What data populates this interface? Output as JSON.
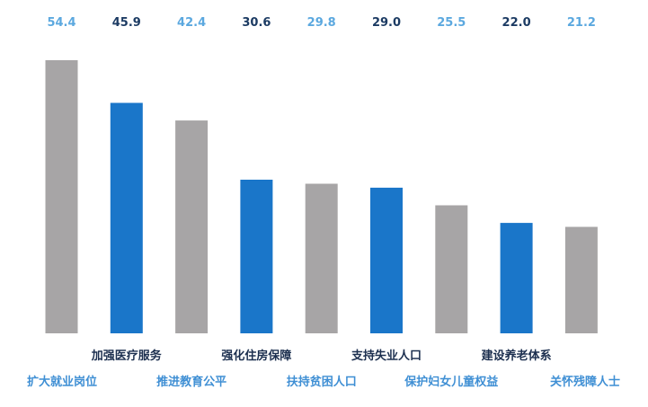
{
  "chart_data": {
    "type": "bar",
    "title": "",
    "xlabel": "",
    "ylabel": "",
    "ylim": [
      0,
      54.4
    ],
    "grid": false,
    "legend": "none",
    "categories": [
      "扩大就业岗位",
      "加强医疗服务",
      "推进教育公平",
      "强化住房保障",
      "扶持贫困人口",
      "支持失业人口",
      "保护妇女儿童权益",
      "建设养老体系",
      "关怀残障人士"
    ],
    "values": [
      54.4,
      45.9,
      42.4,
      30.6,
      29.8,
      29.0,
      25.5,
      22.0,
      21.2
    ],
    "value_labels": [
      "54.4",
      "45.9",
      "42.4",
      "30.6",
      "29.8",
      "29.0",
      "25.5",
      "22.0",
      "21.2"
    ],
    "colors": {
      "gray_bar": "#a7a5a6",
      "blue_bar": "#1a76c9",
      "gray_value_text": "#5ba8df",
      "blue_value_text": "#1c3b63",
      "gray_category_text": "#3f8fd4",
      "blue_category_text": "#1c2f4f"
    }
  }
}
